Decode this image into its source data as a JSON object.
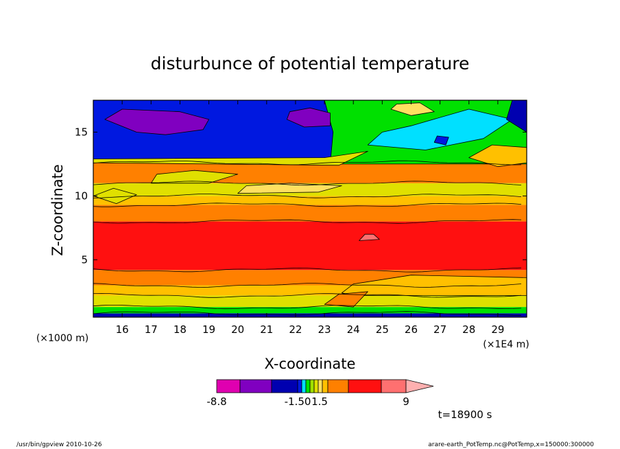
{
  "chart_data": {
    "type": "heatmap",
    "title": "disturbunce of potential temperature",
    "xlabel": "X-coordinate",
    "ylabel": "Z-coordinate",
    "x_unit_left": "(×1000 m)",
    "x_unit_right": "(×1E4 m)",
    "xlim": [
      15.0,
      30.0
    ],
    "ylim": [
      0.5,
      17.5
    ],
    "x_ticks": [
      16,
      17,
      18,
      19,
      20,
      21,
      22,
      23,
      24,
      25,
      26,
      27,
      28,
      29
    ],
    "y_ticks": [
      5,
      10,
      15
    ],
    "colorbar": {
      "colors": [
        "#e000b0",
        "#8000c0",
        "#0000b0",
        "#0018e0",
        "#00e0ff",
        "#00e000",
        "#a0e000",
        "#e0e000",
        "#ffe060",
        "#ffc000",
        "#ff8000",
        "#ff1010",
        "#ff7070",
        "#ffb0b0"
      ],
      "labels": [
        "-8.8",
        "-1.50",
        "1.5",
        "9"
      ]
    },
    "bands_bottom_to_top": [
      {
        "z0": 0.5,
        "z1": 0.8,
        "color": "#0000b0"
      },
      {
        "z0": 0.8,
        "z1": 1.3,
        "color": "#00e000"
      },
      {
        "z0": 1.3,
        "z1": 2.2,
        "color": "#e0e000"
      },
      {
        "z0": 2.2,
        "z1": 3.0,
        "color": "#ffc000"
      },
      {
        "z0": 3.0,
        "z1": 4.2,
        "color": "#ff8000"
      },
      {
        "z0": 4.2,
        "z1": 8.0,
        "color": "#ff1010"
      },
      {
        "z0": 8.0,
        "z1": 9.3,
        "color": "#ff8000"
      },
      {
        "z0": 9.3,
        "z1": 10.0,
        "color": "#ffc000"
      },
      {
        "z0": 10.0,
        "z1": 11.0,
        "color": "#e0e000"
      },
      {
        "z0": 11.0,
        "z1": 12.6,
        "color": "#ff8000"
      },
      {
        "z0": 12.6,
        "z1": 17.5,
        "color": "#0018e0"
      }
    ],
    "regions": [
      {
        "color": "#00e000",
        "pts": [
          [
            23.2,
            12.5
          ],
          [
            30.0,
            12.5
          ],
          [
            30.0,
            17.5
          ],
          [
            23.0,
            17.5
          ],
          [
            23.3,
            15.0
          ]
        ]
      },
      {
        "color": "#00e0ff",
        "pts": [
          [
            24.5,
            14.0
          ],
          [
            26.5,
            13.6
          ],
          [
            28.5,
            14.5
          ],
          [
            29.5,
            16.0
          ],
          [
            28.0,
            16.8
          ],
          [
            26.0,
            15.5
          ],
          [
            25.0,
            15.0
          ]
        ]
      },
      {
        "color": "#8000c0",
        "pts": [
          [
            15.4,
            16.0
          ],
          [
            16.5,
            15.0
          ],
          [
            17.5,
            14.8
          ],
          [
            18.8,
            15.2
          ],
          [
            19.0,
            16.0
          ],
          [
            18.0,
            16.6
          ],
          [
            16.0,
            16.8
          ]
        ]
      },
      {
        "color": "#8000c0",
        "pts": [
          [
            21.7,
            16.0
          ],
          [
            22.3,
            15.4
          ],
          [
            23.2,
            15.5
          ],
          [
            23.2,
            16.5
          ],
          [
            22.5,
            16.9
          ],
          [
            21.8,
            16.6
          ]
        ]
      },
      {
        "color": "#0018e0",
        "pts": [
          [
            26.8,
            14.2
          ],
          [
            27.2,
            14.0
          ],
          [
            27.3,
            14.6
          ],
          [
            26.9,
            14.7
          ]
        ]
      },
      {
        "color": "#0000b0",
        "pts": [
          [
            29.3,
            16.0
          ],
          [
            30.0,
            15.0
          ],
          [
            30.0,
            17.5
          ],
          [
            29.5,
            17.5
          ]
        ]
      },
      {
        "color": "#e0e000",
        "pts": [
          [
            15.0,
            12.6
          ],
          [
            23.5,
            12.4
          ],
          [
            24.5,
            13.5
          ],
          [
            23.0,
            13.0
          ],
          [
            15.0,
            12.9
          ]
        ]
      },
      {
        "color": "#ffc000",
        "pts": [
          [
            28.0,
            13.0
          ],
          [
            29.0,
            12.3
          ],
          [
            30.0,
            12.6
          ],
          [
            30.0,
            13.8
          ],
          [
            28.8,
            14.0
          ]
        ]
      },
      {
        "color": "#ffe060",
        "pts": [
          [
            25.3,
            16.8
          ],
          [
            26.0,
            16.3
          ],
          [
            26.8,
            16.6
          ],
          [
            26.3,
            17.3
          ],
          [
            25.5,
            17.2
          ]
        ]
      },
      {
        "color": "#ff7070",
        "pts": [
          [
            24.2,
            6.5
          ],
          [
            24.9,
            6.6
          ],
          [
            24.7,
            7.0
          ],
          [
            24.4,
            7.0
          ]
        ]
      },
      {
        "color": "#e0e000",
        "pts": [
          [
            17.0,
            11.0
          ],
          [
            19.0,
            11.0
          ],
          [
            20.0,
            11.7
          ],
          [
            18.5,
            12.0
          ],
          [
            17.2,
            11.7
          ]
        ]
      },
      {
        "color": "#e0e000",
        "pts": [
          [
            15.0,
            10.0
          ],
          [
            15.8,
            9.4
          ],
          [
            16.5,
            10.1
          ],
          [
            15.7,
            10.6
          ]
        ]
      },
      {
        "color": "#ffe060",
        "pts": [
          [
            20.0,
            10.2
          ],
          [
            22.8,
            10.3
          ],
          [
            23.6,
            10.8
          ],
          [
            21.8,
            11.0
          ],
          [
            20.3,
            10.8
          ]
        ]
      },
      {
        "color": "#ffc000",
        "pts": [
          [
            24.0,
            2.2
          ],
          [
            30.0,
            2.2
          ],
          [
            30.0,
            3.6
          ],
          [
            26.0,
            3.8
          ],
          [
            24.0,
            3.1
          ],
          [
            23.6,
            2.4
          ]
        ]
      },
      {
        "color": "#ff8000",
        "pts": [
          [
            23.0,
            1.5
          ],
          [
            24.0,
            1.3
          ],
          [
            24.5,
            2.5
          ],
          [
            23.5,
            2.3
          ]
        ]
      }
    ]
  },
  "info": {
    "time_label": "t=18900 s",
    "footer_left": "/usr/bin/gpview  2010-10-26",
    "footer_right": "arare-earth_PotTemp.nc@PotTemp,x=150000:300000"
  }
}
